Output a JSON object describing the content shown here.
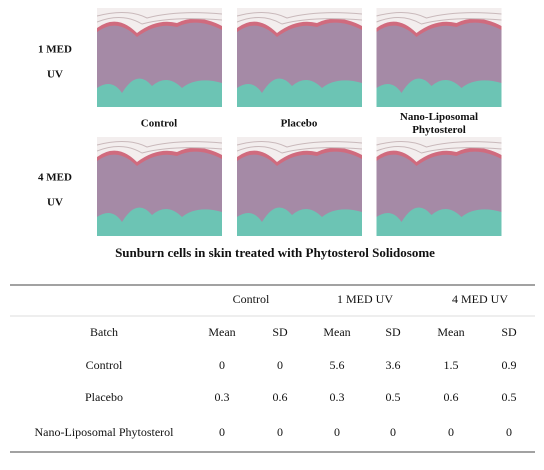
{
  "figure": {
    "row_labels": [
      [
        "1 MED",
        "UV"
      ],
      [
        "4 MED",
        "UV"
      ]
    ],
    "panel_labels": [
      [
        "Control"
      ],
      [
        "Placebo"
      ],
      [
        "Nano-Liposomal",
        "Phytosterol"
      ]
    ],
    "caption": "Sunburn cells in skin treated with Phytosterol Solidosome"
  },
  "table": {
    "group_headers": [
      "Control",
      "1 MED UV",
      "4 MED UV"
    ],
    "sub_headers": [
      "Batch",
      "Mean",
      "SD",
      "Mean",
      "SD",
      "Mean",
      "SD"
    ],
    "rows": [
      [
        "Control",
        0,
        0,
        5.6,
        3.6,
        1.5,
        0.9
      ],
      [
        "Placebo",
        0.3,
        0.6,
        0.3,
        0.5,
        0.6,
        0.5
      ],
      [
        "Nano-Liposomal Phytosterol",
        0,
        0,
        0,
        0,
        0,
        0
      ]
    ]
  }
}
